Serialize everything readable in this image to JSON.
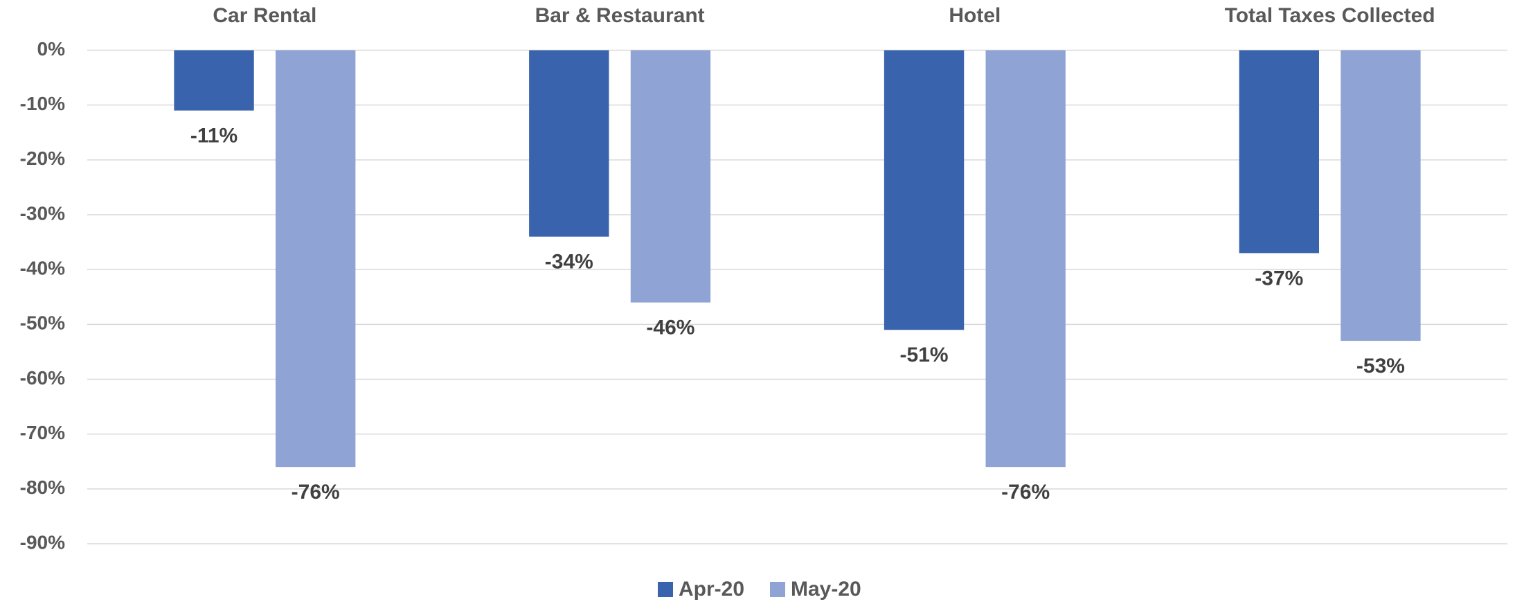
{
  "chart_data": {
    "type": "bar",
    "categories": [
      "Car Rental",
      "Bar & Restaurant",
      "Hotel",
      "Total Taxes Collected"
    ],
    "series": [
      {
        "name": "Apr-20",
        "color": "#3a63ad",
        "values": [
          -11,
          -34,
          -51,
          -37
        ],
        "value_labels": [
          "-11%",
          "-34%",
          "-51%",
          "-37%"
        ]
      },
      {
        "name": "May-20",
        "color": "#8fa4d4",
        "values": [
          -76,
          -46,
          -76,
          -53
        ],
        "value_labels": [
          "-76%",
          "-46%",
          "-76%",
          "-53%"
        ]
      }
    ],
    "ylim": [
      -90,
      0
    ],
    "yticks": [
      {
        "value": 0,
        "label": "0%"
      },
      {
        "value": -10,
        "label": "-10%"
      },
      {
        "value": -20,
        "label": "-20%"
      },
      {
        "value": -30,
        "label": "-30%"
      },
      {
        "value": -40,
        "label": "-40%"
      },
      {
        "value": -50,
        "label": "-50%"
      },
      {
        "value": -60,
        "label": "-60%"
      },
      {
        "value": -70,
        "label": "-70%"
      },
      {
        "value": -80,
        "label": "-80%"
      },
      {
        "value": -90,
        "label": "-90%"
      }
    ],
    "grid": true,
    "legend": "bottom"
  }
}
